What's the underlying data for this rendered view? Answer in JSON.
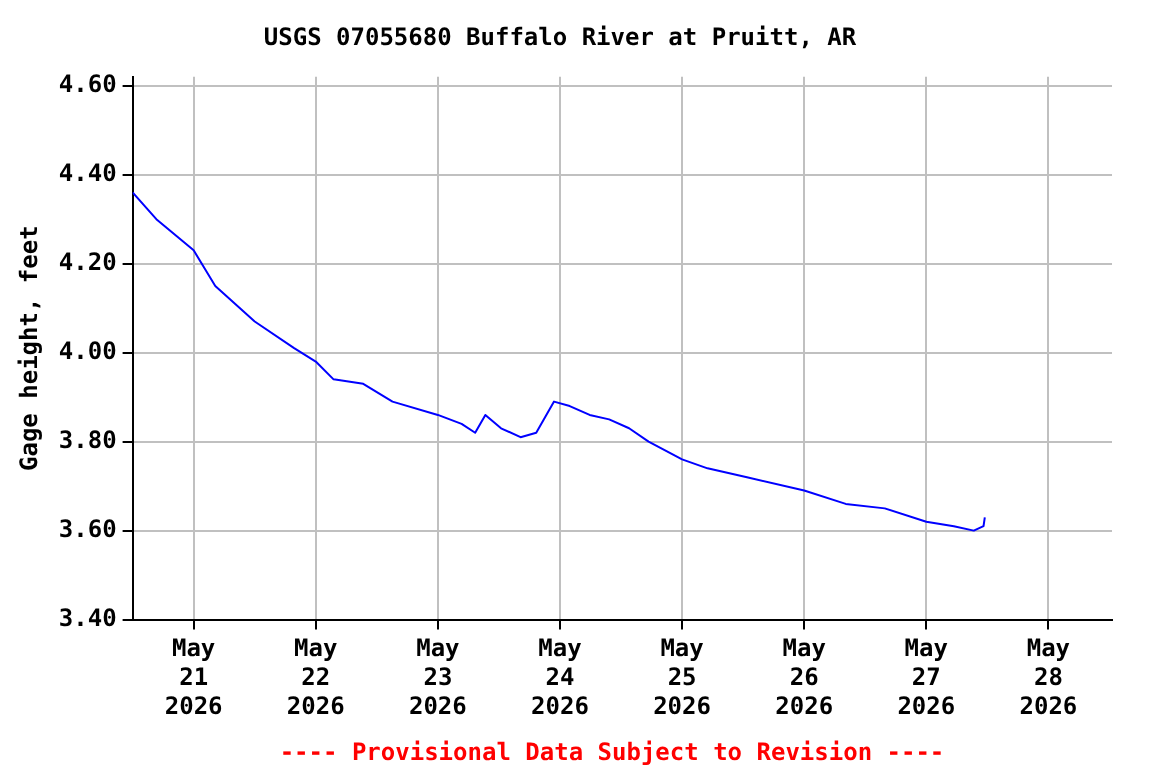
{
  "chart_data": {
    "type": "line",
    "title": "USGS 07055680 Buffalo River at Pruitt, AR",
    "ylabel": "Gage height, feet",
    "annotations": [
      "---- Provisional Data Subject to Revision ----"
    ],
    "x": [
      "2026-05-20T12:00",
      "2026-05-20T16:40",
      "2026-05-21T00:00",
      "2026-05-21T04:15",
      "2026-05-21T12:00",
      "2026-05-21T19:45",
      "2026-05-22T00:00",
      "2026-05-22T03:30",
      "2026-05-22T09:20",
      "2026-05-22T15:05",
      "2026-05-23T00:00",
      "2026-05-23T04:40",
      "2026-05-23T07:20",
      "2026-05-23T09:20",
      "2026-05-23T12:25",
      "2026-05-23T16:15",
      "2026-05-23T19:20",
      "2026-05-23T22:50",
      "2026-05-24T01:55",
      "2026-05-24T05:50",
      "2026-05-24T09:40",
      "2026-05-24T13:35",
      "2026-05-24T17:25",
      "2026-05-25T00:00",
      "2026-05-25T05:00",
      "2026-05-25T12:45",
      "2026-05-26T00:00",
      "2026-05-26T08:10",
      "2026-05-26T15:50",
      "2026-05-27T00:00",
      "2026-05-27T05:25",
      "2026-05-27T09:20",
      "2026-05-27T11:15",
      "2026-05-27T11:30"
    ],
    "series": [
      {
        "color": "#0000ff",
        "values": [
          4.36,
          4.3,
          4.23,
          4.15,
          4.07,
          4.01,
          3.98,
          3.94,
          3.93,
          3.89,
          3.86,
          3.84,
          3.82,
          3.86,
          3.83,
          3.81,
          3.82,
          3.89,
          3.88,
          3.86,
          3.85,
          3.83,
          3.8,
          3.76,
          3.74,
          3.72,
          3.69,
          3.66,
          3.65,
          3.62,
          3.61,
          3.6,
          3.61,
          3.63
        ]
      }
    ],
    "xlim": [
      "2026-05-20T12:00",
      "2026-05-28T12:30"
    ],
    "xticks": [
      {
        "value": "2026-05-21",
        "label": "May\n21\n2026"
      },
      {
        "value": "2026-05-22",
        "label": "May\n22\n2026"
      },
      {
        "value": "2026-05-23",
        "label": "May\n23\n2026"
      },
      {
        "value": "2026-05-24",
        "label": "May\n24\n2026"
      },
      {
        "value": "2026-05-25",
        "label": "May\n25\n2026"
      },
      {
        "value": "2026-05-26",
        "label": "May\n26\n2026"
      },
      {
        "value": "2026-05-27",
        "label": "May\n27\n2026"
      },
      {
        "value": "2026-05-28",
        "label": "May\n28\n2026"
      }
    ],
    "ylim": [
      3.4,
      4.62
    ],
    "yticks": [
      {
        "value": 3.4,
        "label": "3.40"
      },
      {
        "value": 3.6,
        "label": "3.60"
      },
      {
        "value": 3.8,
        "label": "3.80"
      },
      {
        "value": 4.0,
        "label": "4.00"
      },
      {
        "value": 4.2,
        "label": "4.20"
      },
      {
        "value": 4.4,
        "label": "4.40"
      },
      {
        "value": 4.6,
        "label": "4.60"
      }
    ],
    "grid": true,
    "marker": "none",
    "line_style": "solid"
  }
}
